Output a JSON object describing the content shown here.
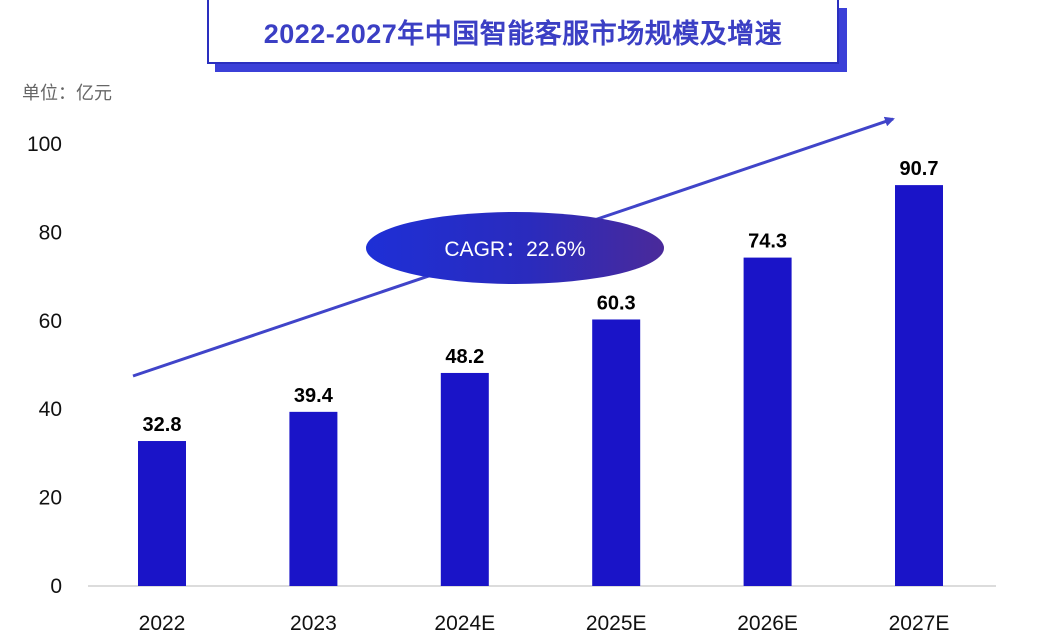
{
  "title": "2022-2027年中国智能客服市场规模及增速",
  "unit_label": "单位：亿元",
  "cagr_label": "CAGR：22.6%",
  "colors": {
    "bar": "#1a14c8",
    "title": "#3b3fc4",
    "arrow": "#4044c9",
    "axis": "#d0d0d0"
  },
  "chart_data": {
    "type": "bar",
    "title": "2022-2027年中国智能客服市场规模及增速",
    "categories": [
      "2022",
      "2023",
      "2024E",
      "2025E",
      "2026E",
      "2027E"
    ],
    "values": [
      32.8,
      39.4,
      48.2,
      60.3,
      74.3,
      90.7
    ],
    "value_labels": [
      "32.8",
      "39.4",
      "48.2",
      "60.3",
      "74.3",
      "90.7"
    ],
    "ylim": [
      0,
      100
    ],
    "yticks": [
      0,
      20,
      40,
      60,
      80,
      100
    ],
    "grid": false,
    "annotation": "CAGR：22.6%"
  }
}
